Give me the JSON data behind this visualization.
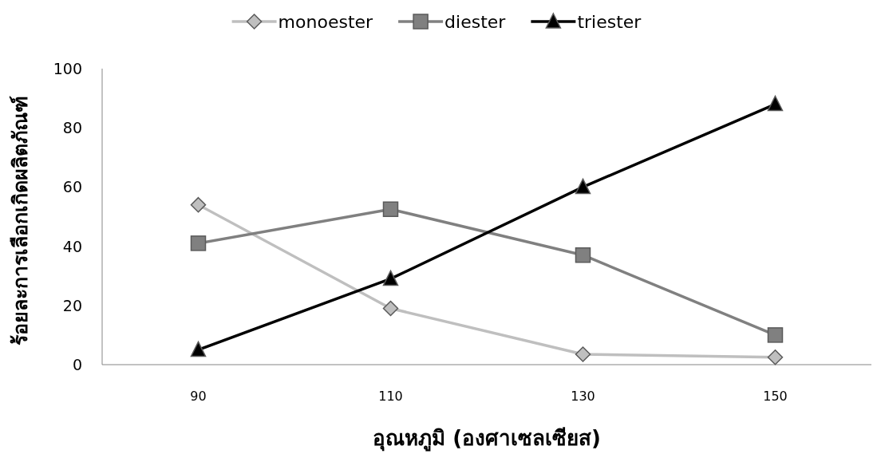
{
  "chart_data": {
    "type": "line",
    "xlabel": "อุณหภูมิ (องศาเซลเซียส)",
    "ylabel": "ร้อยละการเลือกเกิดผลิตภัณฑ์",
    "categories": [
      "90",
      "110",
      "130",
      "150"
    ],
    "ylim": [
      0,
      100
    ],
    "yticks": [
      0,
      20,
      40,
      60,
      80,
      100
    ],
    "grid": false,
    "legend": "top",
    "series": [
      {
        "name": "monoester",
        "color": "#bfbfbf",
        "marker": "diamond",
        "values": [
          54,
          19,
          3.5,
          2.5
        ]
      },
      {
        "name": "diester",
        "color": "#808080",
        "marker": "square",
        "values": [
          41,
          52.5,
          37,
          10
        ]
      },
      {
        "name": "triester",
        "color": "#000000",
        "marker": "triangle",
        "values": [
          5,
          29,
          60,
          88
        ]
      }
    ]
  }
}
